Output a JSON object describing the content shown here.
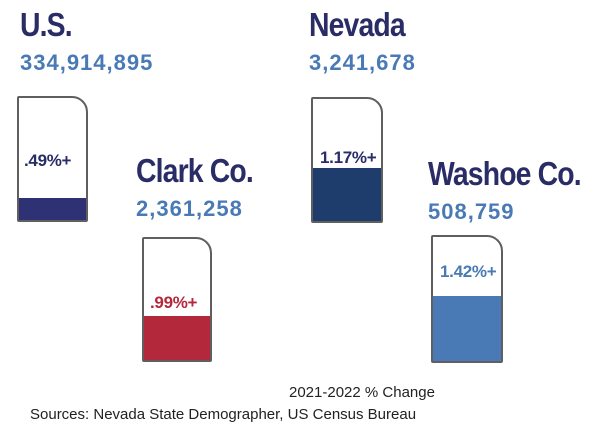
{
  "chart_data": {
    "type": "bar",
    "categories": [
      "U.S.",
      "Nevada",
      "Clark Co.",
      "Washoe Co."
    ],
    "populations": [
      "334,914,895",
      "3,241,678",
      "2,361,258",
      "508,759"
    ],
    "series": [
      {
        "values": [
          0.49,
          1.17,
          0.99,
          1.42
        ],
        "value_labels": [
          ".49%+",
          "1.17%+",
          ".99%+",
          "1.42%+"
        ],
        "colors": [
          "#2e3275",
          "#1e3d6c",
          "#b3283b",
          "#4a7ab5"
        ]
      }
    ],
    "label_colors": [
      "#2a2c66",
      "#2a2c66",
      "#b3283b",
      "#4a7ab5"
    ],
    "name_color": "#2a2c66",
    "population_color": "#4a7ab5",
    "ylim": [
      0,
      2.7
    ],
    "caption": "2021-2022 % Change",
    "source": "Sources: Nevada State Demographer, US Census Bureau"
  }
}
